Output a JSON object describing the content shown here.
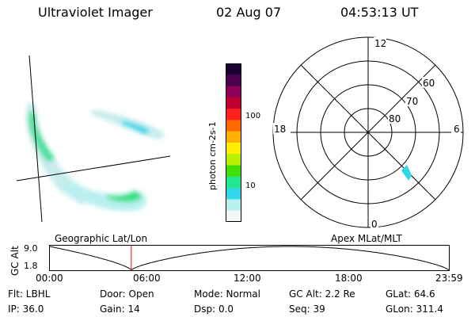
{
  "header": {
    "instrument": "Ultraviolet Imager",
    "date": "02 Aug 07",
    "time": "04:53:13 UT"
  },
  "colorbar": {
    "unit_label": "photon cm-2s-1",
    "ticks": [
      "100",
      "10"
    ],
    "colors": [
      "#1a0033",
      "#4b0050",
      "#8a005a",
      "#c20030",
      "#ff2020",
      "#ff6a00",
      "#ffb000",
      "#ffee00",
      "#b8f000",
      "#40e000",
      "#20e890",
      "#30d8e8",
      "#b8f0f0",
      "#f0f8f8"
    ]
  },
  "polar_plot": {
    "mlt_labels": {
      "top": "12",
      "left": "18",
      "right": "6",
      "bottom": "0"
    },
    "mlat_labels": [
      "60",
      "70",
      "80"
    ]
  },
  "timeline": {
    "left_caption": "Geographic Lat/Lon",
    "right_caption": "Apex MLat/MLT",
    "axis_title": "GC Alt",
    "y_max": "9.0",
    "y_min": "1.8",
    "time_labels": [
      "00:00",
      "06:00",
      "12:00",
      "18:00",
      "23:59"
    ],
    "current_time_fraction": 0.204,
    "marker_color": "#ff0000"
  },
  "status": {
    "flt": "Flt: LBHL",
    "ip": "IP: 36.0",
    "door": "Door: Open",
    "gain": "Gain: 14",
    "mode": "Mode: Normal",
    "dsp": "Dsp:    0.0",
    "gc_alt": "GC Alt: 2.2 Re",
    "seq": "Seq: 39",
    "glat": "GLat:  64.6",
    "glon": "GLon: 311.4"
  }
}
